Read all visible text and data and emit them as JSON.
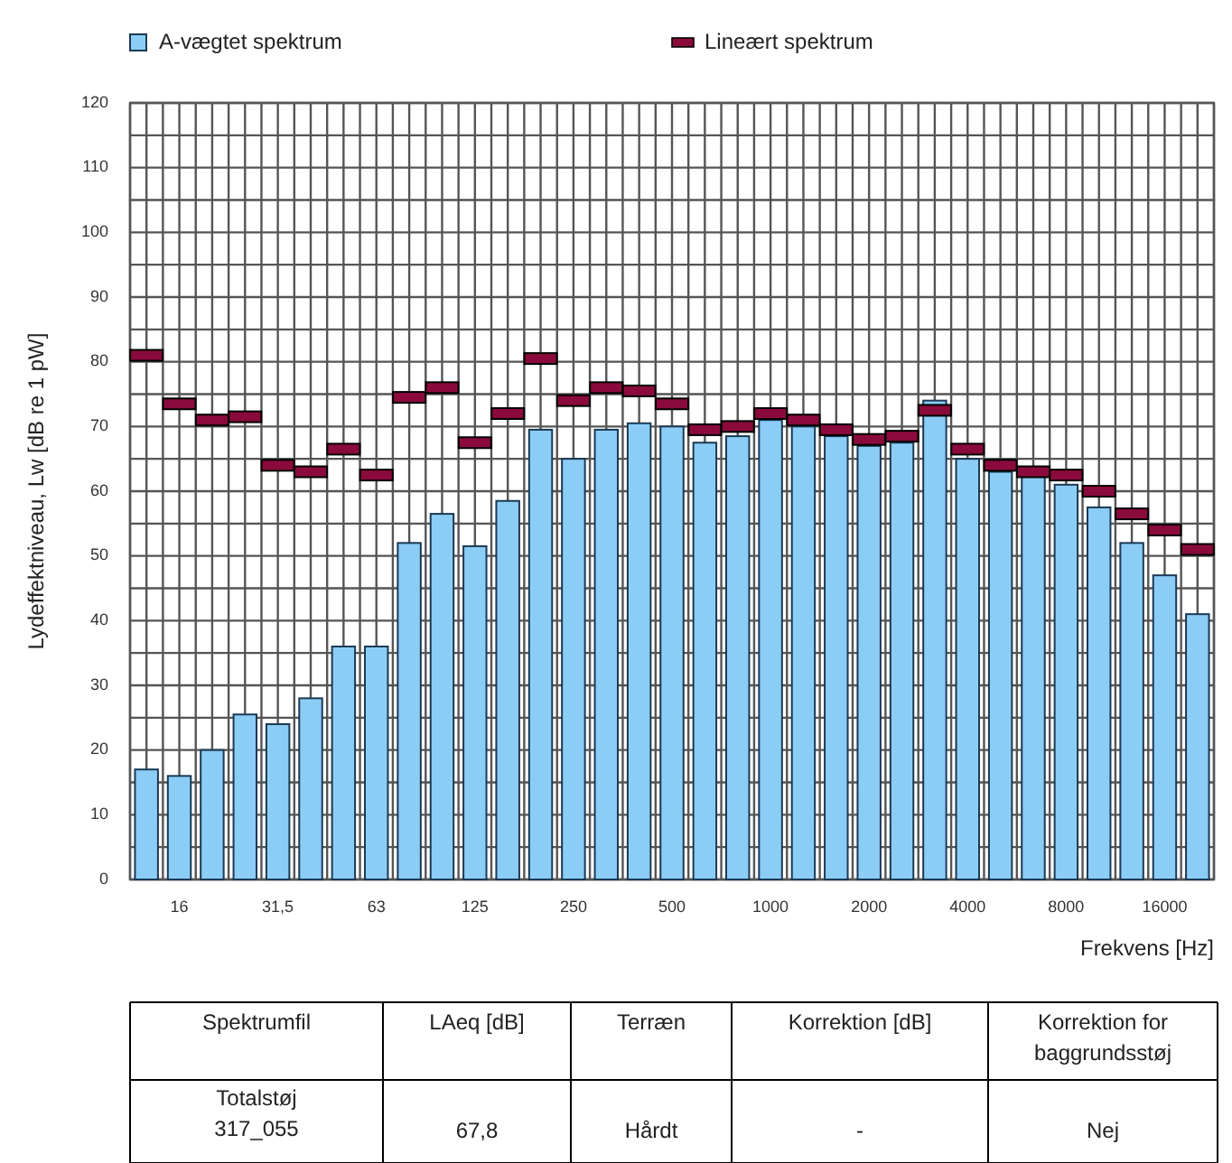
{
  "chart_data": {
    "type": "bar",
    "xlabel": "Frekvens [Hz]",
    "ylabel": "Lydeffektniveau, Lw [dB re 1 pW]",
    "categories": [
      null,
      "16",
      null,
      null,
      "31,5",
      null,
      null,
      "63",
      null,
      null,
      "125",
      null,
      null,
      "250",
      null,
      null,
      "500",
      null,
      null,
      "1000",
      null,
      null,
      "2000",
      null,
      null,
      "4000",
      null,
      null,
      "8000",
      null,
      null,
      "16000",
      null
    ],
    "series": [
      {
        "name": "A-vægtet spektrum",
        "color": "#8ccdf6",
        "values": [
          17,
          16,
          20,
          25.5,
          24,
          28,
          36,
          36,
          52,
          56.5,
          51.5,
          58.5,
          69.5,
          65,
          69.5,
          70.5,
          70,
          67.5,
          68.5,
          71,
          70,
          68.5,
          67,
          67.5,
          74,
          65,
          63,
          62.5,
          61,
          57.5,
          52,
          47,
          41
        ]
      },
      {
        "name": "Lineært spektrum",
        "type": "scatter",
        "color": "#8b0a3c",
        "values": [
          81,
          73.5,
          71,
          71.5,
          64,
          63,
          66.5,
          62.5,
          74.5,
          76,
          67.5,
          72,
          80.5,
          74,
          76,
          75.5,
          73.5,
          69.5,
          70,
          72,
          71,
          69.5,
          68,
          68.5,
          72.5,
          66.5,
          64,
          63,
          62.5,
          60,
          56.5,
          54,
          51
        ]
      }
    ],
    "marker": "square",
    "ylim": [
      0,
      120
    ],
    "yticks": [
      0,
      {
        "value": 5,
        "label": null
      },
      10,
      {
        "value": 15,
        "label": null
      },
      20,
      {
        "value": 25,
        "label": null
      },
      30,
      {
        "value": 35,
        "label": null
      },
      40,
      {
        "value": 45,
        "label": null
      },
      50,
      {
        "value": 55,
        "label": null
      },
      60,
      {
        "value": 65,
        "label": null
      },
      70,
      {
        "value": 75,
        "label": null
      },
      80,
      {
        "value": 85,
        "label": null
      },
      90,
      {
        "value": 95,
        "label": null
      },
      100,
      {
        "value": 105,
        "label": null
      },
      110,
      {
        "value": 115,
        "label": null
      },
      120
    ],
    "grid": true,
    "legend": "top",
    "annotations": [
      "Spektrumfil",
      "LAeq [dB]",
      "Terræn",
      "Korrektion [dB]",
      "Korrektion for baggrundsstøj",
      "Totalstøj 317_055",
      "67,8",
      "Hårdt",
      "-",
      "Nej"
    ]
  }
}
